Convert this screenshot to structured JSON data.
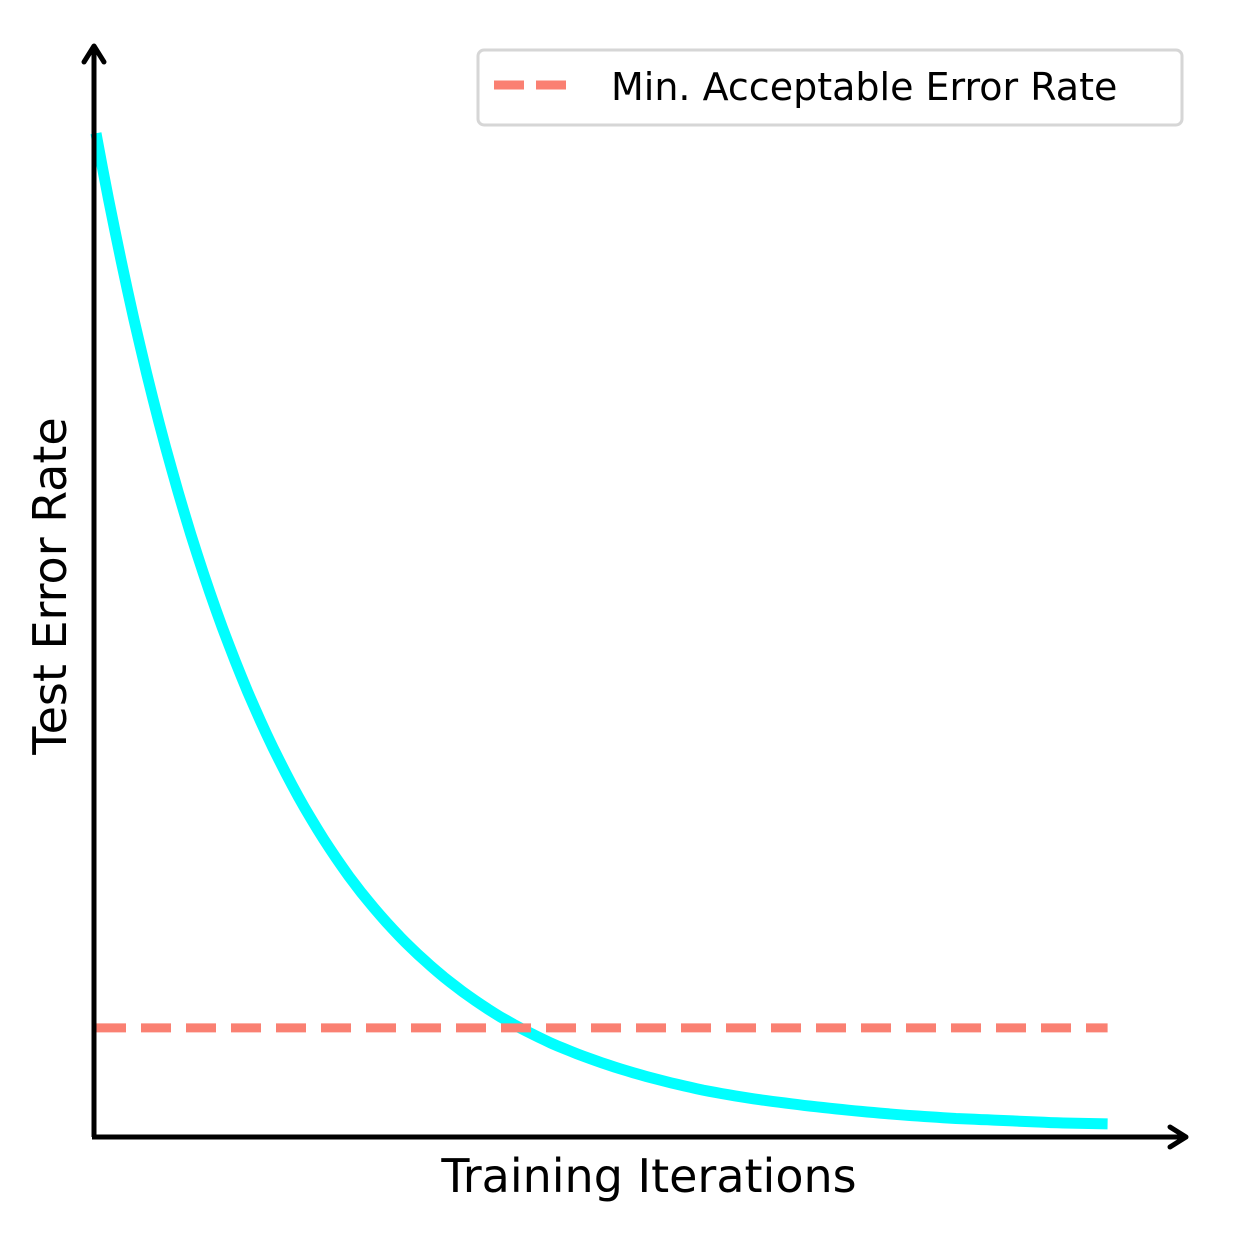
{
  "chart_data": {
    "type": "line",
    "title": "",
    "xlabel": "Training Iterations",
    "ylabel": "Test Error Rate",
    "x_ticks_shown": false,
    "y_ticks_shown": false,
    "grid": false,
    "xlim": [
      0,
      1.09
    ],
    "ylim": [
      0,
      1.0
    ],
    "legend": {
      "placement": "top-right",
      "entries": [
        "Min. Acceptable Error Rate"
      ]
    },
    "series": [
      {
        "name": "",
        "style": "solid",
        "color": "#00ffff",
        "x": [
          0,
          0.05,
          0.1,
          0.15,
          0.2,
          0.25,
          0.3,
          0.35,
          0.4,
          0.45,
          0.5,
          0.55,
          0.6,
          0.65,
          0.7,
          0.75,
          0.8,
          0.85,
          0.9,
          0.95,
          1.0
        ],
        "y": [
          0.92,
          0.7,
          0.534,
          0.408,
          0.312,
          0.239,
          0.184,
          0.142,
          0.11,
          0.086,
          0.068,
          0.054,
          0.043,
          0.035,
          0.029,
          0.024,
          0.02,
          0.017,
          0.015,
          0.013,
          0.012
        ]
      },
      {
        "name": "Min. Acceptable Error Rate",
        "style": "dashed",
        "color": "#fa8072",
        "x": [
          0,
          1.0
        ],
        "y": [
          0.1,
          0.1
        ]
      }
    ]
  }
}
